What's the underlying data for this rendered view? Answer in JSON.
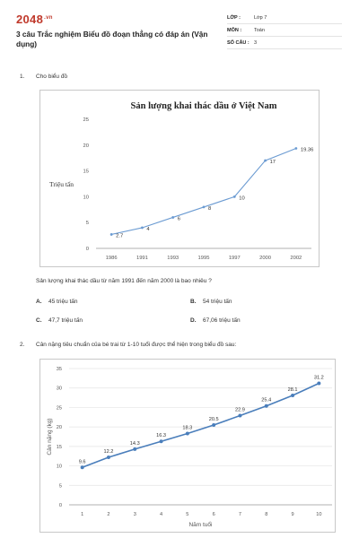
{
  "header": {
    "logo_main": "2048",
    "logo_tld": ".vn",
    "title": "3 câu Trắc nghiệm Biểu đồ đoạn thẳng có đáp án (Vận dụng)",
    "meta": [
      {
        "key": "LỚP :",
        "value": "Lớp 7"
      },
      {
        "key": "MÔN :",
        "value": "Toán"
      },
      {
        "key": "SỐ CÂU :",
        "value": "3"
      }
    ]
  },
  "q1": {
    "number": "1.",
    "prompt": "Cho biểu đồ",
    "question": "Sản lượng khai thác dầu từ năm 1991 đến năm 2000 là bao nhiêu ?",
    "options": [
      {
        "letter": "A.",
        "text": "45 triệu tấn"
      },
      {
        "letter": "B.",
        "text": "54 triệu tấn"
      },
      {
        "letter": "C.",
        "text": "47,7 triệu tấn"
      },
      {
        "letter": "D.",
        "text": "67,06 triệu tấn"
      }
    ]
  },
  "q2": {
    "number": "2.",
    "prompt": "Cân nặng tiêu chuẩn của bé trai từ 1-10 tuổi được thể hiện trong biểu đồ sau:"
  },
  "chart_data": [
    {
      "type": "line",
      "title": "Sản lượng khai thác dầu ở Việt Nam",
      "xlabel": "",
      "ylabel": "Triệu tấn",
      "categories": [
        "1986",
        "1991",
        "1993",
        "1995",
        "1997",
        "2000",
        "2002"
      ],
      "values": [
        2.7,
        4,
        6,
        8,
        10,
        17,
        19.36
      ],
      "labels": [
        "2.7",
        "4",
        "6",
        "8",
        "10",
        "17",
        "19.36"
      ],
      "ylim": [
        0,
        25
      ],
      "yticks": [
        0,
        5,
        10,
        15,
        20,
        25
      ],
      "grid": false,
      "color": "#6b9bd2"
    },
    {
      "type": "line",
      "title": "",
      "xlabel": "Năm tuổi",
      "ylabel": "Cân nặng (kg)",
      "categories": [
        "1",
        "2",
        "3",
        "4",
        "5",
        "6",
        "7",
        "8",
        "9",
        "10"
      ],
      "values": [
        9.6,
        12.2,
        14.3,
        16.3,
        18.3,
        20.5,
        22.9,
        25.4,
        28.1,
        31.2
      ],
      "labels": [
        "9.6",
        "12.2",
        "14.3",
        "16.3",
        "18.3",
        "20.5",
        "22.9",
        "25.4",
        "28.1",
        "31.2"
      ],
      "ylim": [
        0,
        35
      ],
      "yticks": [
        0,
        5,
        10,
        15,
        20,
        25,
        30,
        35
      ],
      "grid": true,
      "color": "#4a7ebb"
    }
  ]
}
